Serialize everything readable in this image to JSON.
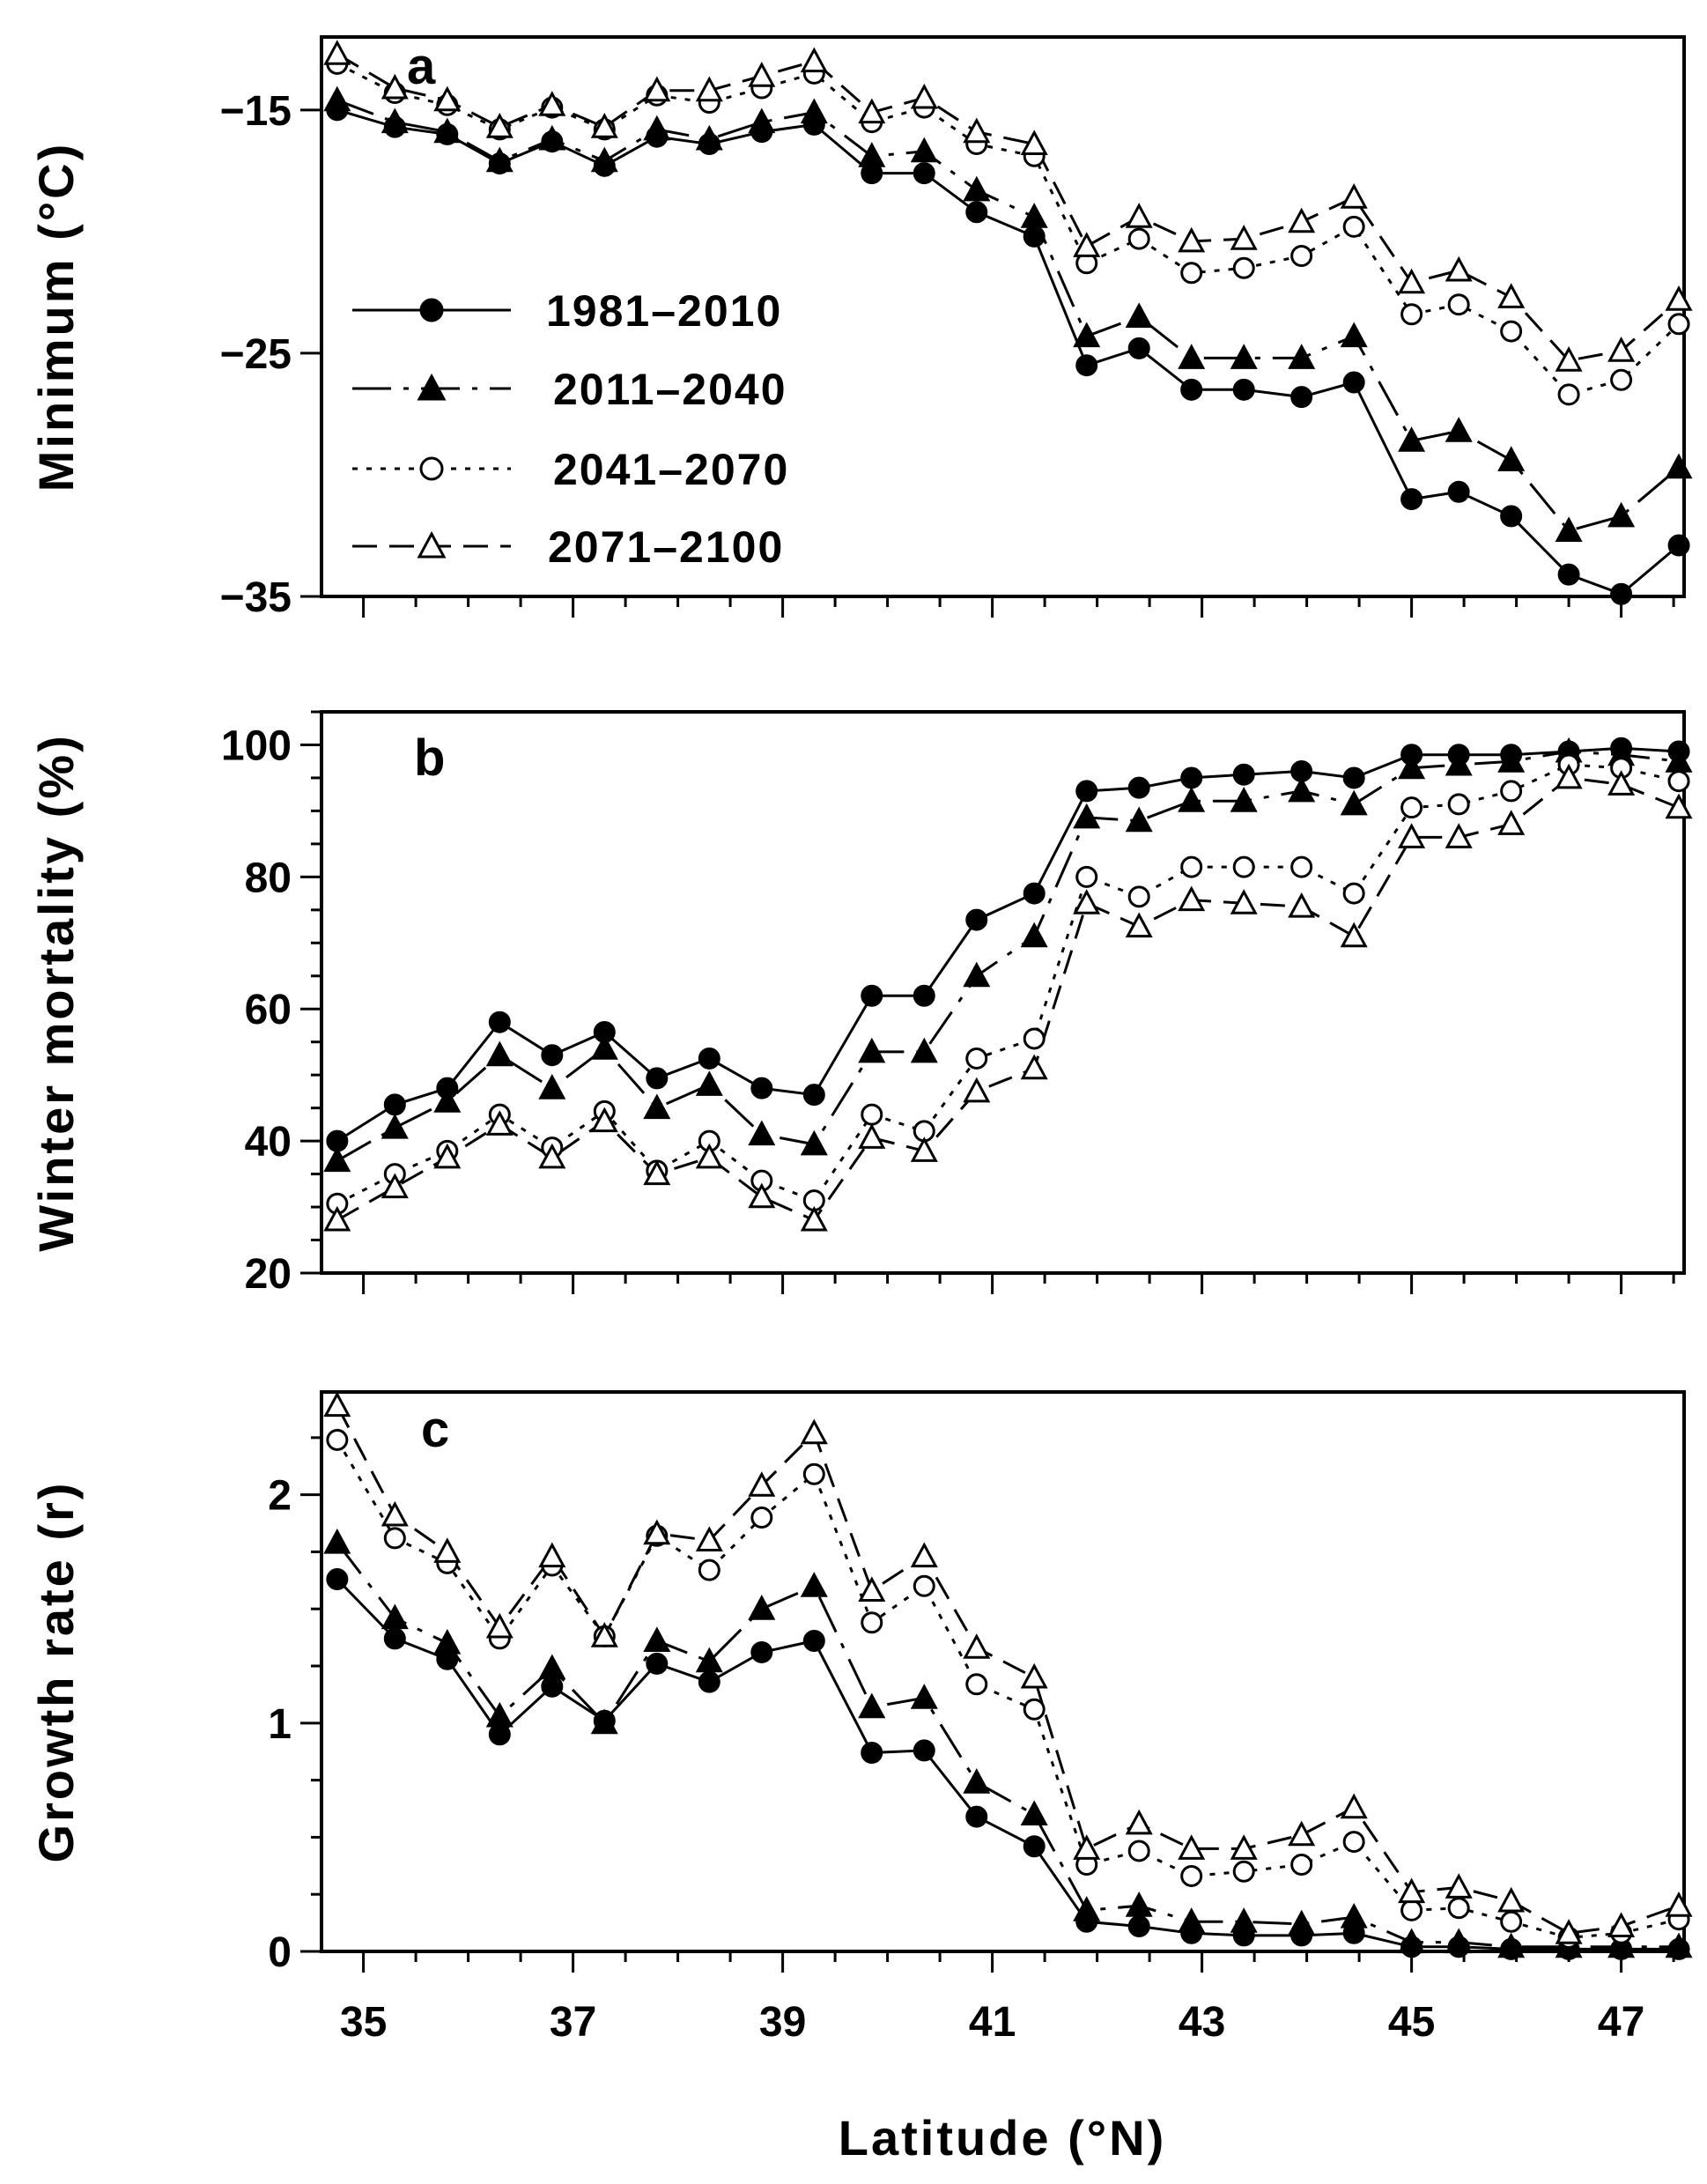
{
  "figure": {
    "xlabel": "Latitude (°N)",
    "x_ticks": [
      35,
      37,
      39,
      41,
      43,
      45,
      47
    ],
    "xlim": [
      34.6,
      47.6
    ]
  },
  "legend": [
    {
      "label": "1981–2010",
      "marker": "filled-circle",
      "dash": "solid"
    },
    {
      "label": "2011–2040",
      "marker": "filled-triangle",
      "dash": "long-dash-dot"
    },
    {
      "label": "2041–2070",
      "marker": "open-circle",
      "dash": "dotted"
    },
    {
      "label": "2071–2100",
      "marker": "open-triangle",
      "dash": "dashed"
    }
  ],
  "chart_data": [
    {
      "type": "line",
      "panel_label": "a",
      "ylabel": "Minimum (°C)",
      "ylim": [
        -35,
        -12
      ],
      "y_ticks": [
        -15,
        -25,
        -35
      ],
      "y_tick_labels": [
        "−15",
        "−25",
        "−35"
      ],
      "x": [
        34.75,
        35.3,
        35.8,
        36.3,
        36.8,
        37.3,
        37.8,
        38.3,
        38.8,
        39.3,
        39.85,
        40.35,
        40.85,
        41.4,
        41.9,
        42.4,
        42.9,
        43.4,
        43.95,
        44.45,
        45.0,
        45.45,
        45.95,
        46.5,
        47.0,
        47.55
      ],
      "series": [
        {
          "name": "1981–2010",
          "values": [
            -15.0,
            -15.7,
            -16.0,
            -17.2,
            -16.3,
            -17.3,
            -16.1,
            -16.4,
            -15.9,
            -15.6,
            -17.6,
            -17.6,
            -19.2,
            -20.2,
            -25.5,
            -24.8,
            -26.5,
            -26.5,
            -26.8,
            -26.2,
            -31.0,
            -30.7,
            -31.7,
            -34.1,
            -34.9,
            -32.9
          ]
        },
        {
          "name": "2011–2040",
          "values": [
            -14.6,
            -15.5,
            -15.9,
            -17.1,
            -16.2,
            -17.1,
            -15.8,
            -16.2,
            -15.5,
            -15.1,
            -16.9,
            -16.7,
            -18.3,
            -19.4,
            -24.3,
            -23.5,
            -25.2,
            -25.2,
            -25.2,
            -24.3,
            -28.6,
            -28.2,
            -29.4,
            -32.3,
            -31.7,
            -29.7
          ]
        },
        {
          "name": "2041–2070",
          "values": [
            -13.1,
            -14.3,
            -14.8,
            -15.8,
            -14.9,
            -15.8,
            -14.4,
            -14.7,
            -14.1,
            -13.5,
            -15.5,
            -14.9,
            -16.4,
            -16.9,
            -21.3,
            -20.3,
            -21.7,
            -21.5,
            -21.0,
            -19.8,
            -23.4,
            -23.0,
            -24.1,
            -26.7,
            -26.1,
            -23.8
          ]
        },
        {
          "name": "2071–2100",
          "values": [
            -12.7,
            -14.1,
            -14.6,
            -15.7,
            -14.8,
            -15.7,
            -14.2,
            -14.2,
            -13.6,
            -13.0,
            -15.1,
            -14.5,
            -15.9,
            -16.4,
            -20.6,
            -19.4,
            -20.4,
            -20.3,
            -19.6,
            -18.6,
            -22.1,
            -21.6,
            -22.7,
            -25.3,
            -24.9,
            -22.8
          ]
        }
      ]
    },
    {
      "type": "line",
      "panel_label": "b",
      "ylabel": "Winter mortality (%)",
      "ylim": [
        20,
        105
      ],
      "y_ticks": [
        20,
        40,
        60,
        80,
        100
      ],
      "y_tick_labels": [
        "20",
        "40",
        "60",
        "80",
        "100"
      ],
      "x": [
        34.75,
        35.3,
        35.8,
        36.3,
        36.8,
        37.3,
        37.8,
        38.3,
        38.8,
        39.3,
        39.85,
        40.35,
        40.85,
        41.4,
        41.9,
        42.4,
        42.9,
        43.4,
        43.95,
        44.45,
        45.0,
        45.45,
        45.95,
        46.5,
        47.0,
        47.55
      ],
      "series": [
        {
          "name": "1981–2010",
          "values": [
            40,
            45.5,
            48,
            58,
            53,
            56.5,
            49.5,
            52.5,
            48,
            47,
            62,
            62,
            73.5,
            77.5,
            93,
            93.5,
            95,
            95.5,
            96,
            95,
            98.5,
            98.5,
            98.5,
            99,
            99.5,
            99
          ]
        },
        {
          "name": "2011–2040",
          "values": [
            37,
            42,
            46,
            53,
            48,
            54,
            45,
            48.5,
            41,
            39.5,
            53.5,
            53.5,
            65,
            71,
            89,
            88.5,
            91.5,
            91.5,
            93,
            91,
            96.5,
            97,
            97.5,
            99,
            98.5,
            97.5
          ]
        },
        {
          "name": "2041–2070",
          "values": [
            30.5,
            35,
            38.5,
            44,
            39,
            44.5,
            35.5,
            40,
            34,
            31,
            44,
            41.5,
            52.5,
            55.5,
            80,
            77,
            81.5,
            81.5,
            81.5,
            77.5,
            90.5,
            91,
            93,
            97,
            96.5,
            94.5
          ]
        },
        {
          "name": "2071–2100",
          "values": [
            28,
            33,
            37.5,
            42.5,
            37.5,
            43,
            35,
            37.5,
            31.5,
            28,
            40.5,
            38.5,
            47.5,
            51,
            76,
            72.5,
            76.5,
            76,
            75.5,
            71,
            86,
            86,
            88,
            95,
            94,
            90.5
          ]
        }
      ]
    },
    {
      "type": "line",
      "panel_label": "c",
      "ylabel": "Growth rate (r)",
      "ylim": [
        0,
        2.45
      ],
      "y_ticks": [
        0,
        1,
        2
      ],
      "y_tick_labels": [
        "0",
        "1",
        "2"
      ],
      "x": [
        34.75,
        35.3,
        35.8,
        36.3,
        36.8,
        37.3,
        37.8,
        38.3,
        38.8,
        39.3,
        39.85,
        40.35,
        40.85,
        41.4,
        41.9,
        42.4,
        42.9,
        43.4,
        43.95,
        44.45,
        45.0,
        45.45,
        45.95,
        46.5,
        47.0,
        47.55
      ],
      "series": [
        {
          "name": "1981–2010",
          "values": [
            1.63,
            1.37,
            1.28,
            0.95,
            1.16,
            1.01,
            1.26,
            1.18,
            1.31,
            1.36,
            0.87,
            0.88,
            0.59,
            0.46,
            0.13,
            0.11,
            0.08,
            0.07,
            0.07,
            0.08,
            0.02,
            0.02,
            0.01,
            0.01,
            0.01,
            0.01
          ]
        },
        {
          "name": "2011–2040",
          "values": [
            1.79,
            1.46,
            1.35,
            1.03,
            1.24,
            1.0,
            1.36,
            1.27,
            1.5,
            1.6,
            1.07,
            1.11,
            0.74,
            0.6,
            0.18,
            0.2,
            0.13,
            0.13,
            0.12,
            0.15,
            0.04,
            0.04,
            0.02,
            0.02,
            0.02,
            0.02
          ]
        },
        {
          "name": "2041–2070",
          "values": [
            2.24,
            1.81,
            1.7,
            1.37,
            1.69,
            1.38,
            1.82,
            1.67,
            1.9,
            2.09,
            1.44,
            1.6,
            1.17,
            1.06,
            0.38,
            0.44,
            0.33,
            0.35,
            0.38,
            0.48,
            0.18,
            0.19,
            0.13,
            0.06,
            0.08,
            0.14
          ]
        },
        {
          "name": "2071–2100",
          "values": [
            2.39,
            1.91,
            1.75,
            1.42,
            1.73,
            1.38,
            1.83,
            1.8,
            2.04,
            2.27,
            1.58,
            1.73,
            1.33,
            1.2,
            0.45,
            0.56,
            0.45,
            0.45,
            0.51,
            0.63,
            0.26,
            0.28,
            0.22,
            0.08,
            0.11,
            0.2
          ]
        }
      ]
    }
  ]
}
